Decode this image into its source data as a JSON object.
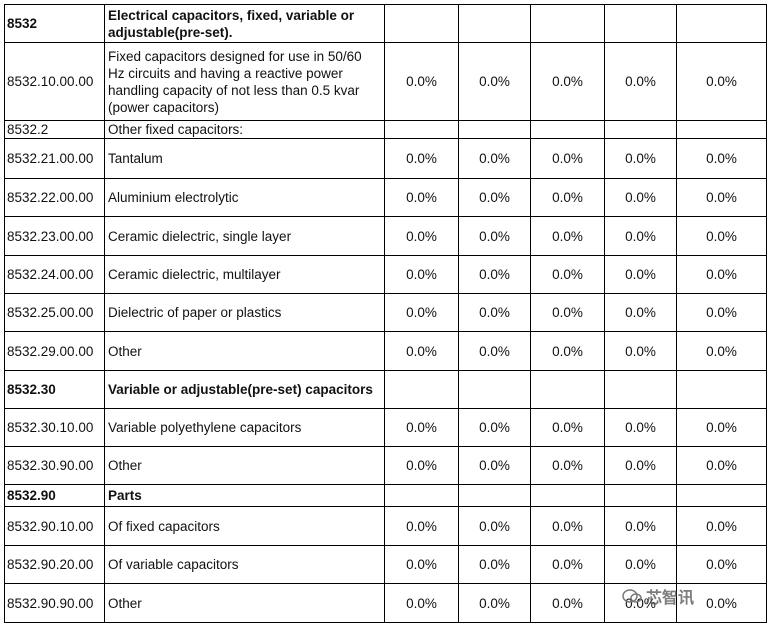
{
  "table": {
    "rows": [
      {
        "code": "8532",
        "description": "Electrical capacitors, fixed, variable or adjustable(pre-set).",
        "heading": true
      },
      {
        "code": "8532.10.00.00",
        "description": "Fixed capacitors designed for use in 50/60 Hz circuits and having a reactive power handling capacity of not less than 0.5 kvar (power capacitors)",
        "rates": [
          "0.0%",
          "0.0%",
          "0.0%",
          "0.0%",
          "0.0%"
        ]
      },
      {
        "code": "8532.2",
        "description": "Other fixed capacitors:"
      },
      {
        "code": "8532.21.00.00",
        "description": "Tantalum",
        "rates": [
          "0.0%",
          "0.0%",
          "0.0%",
          "0.0%",
          "0.0%"
        ]
      },
      {
        "code": "8532.22.00.00",
        "description": "Aluminium electrolytic",
        "rates": [
          "0.0%",
          "0.0%",
          "0.0%",
          "0.0%",
          "0.0%"
        ]
      },
      {
        "code": "8532.23.00.00",
        "description": "Ceramic dielectric, single layer",
        "rates": [
          "0.0%",
          "0.0%",
          "0.0%",
          "0.0%",
          "0.0%"
        ]
      },
      {
        "code": "8532.24.00.00",
        "description": "Ceramic dielectric, multilayer",
        "rates": [
          "0.0%",
          "0.0%",
          "0.0%",
          "0.0%",
          "0.0%"
        ]
      },
      {
        "code": "8532.25.00.00",
        "description": "Dielectric of paper or plastics",
        "rates": [
          "0.0%",
          "0.0%",
          "0.0%",
          "0.0%",
          "0.0%"
        ]
      },
      {
        "code": "8532.29.00.00",
        "description": "Other",
        "rates": [
          "0.0%",
          "0.0%",
          "0.0%",
          "0.0%",
          "0.0%"
        ]
      },
      {
        "code": "8532.30",
        "description": "Variable or adjustable(pre-set) capacitors",
        "heading": true
      },
      {
        "code": "8532.30.10.00",
        "description": "Variable polyethylene capacitors",
        "rates": [
          "0.0%",
          "0.0%",
          "0.0%",
          "0.0%",
          "0.0%"
        ]
      },
      {
        "code": "8532.30.90.00",
        "description": "Other",
        "rates": [
          "0.0%",
          "0.0%",
          "0.0%",
          "0.0%",
          "0.0%"
        ]
      },
      {
        "code": "8532.90",
        "description": "Parts",
        "heading": true
      },
      {
        "code": "8532.90.10.00",
        "description": "Of fixed capacitors",
        "rates": [
          "0.0%",
          "0.0%",
          "0.0%",
          "0.0%",
          "0.0%"
        ]
      },
      {
        "code": "8532.90.20.00",
        "description": "Of variable capacitors",
        "rates": [
          "0.0%",
          "0.0%",
          "0.0%",
          "0.0%",
          "0.0%"
        ]
      },
      {
        "code": "8532.90.90.00",
        "description": "Other",
        "rates": [
          "0.0%",
          "0.0%",
          "0.0%",
          "0.0%",
          "0.0%"
        ]
      }
    ]
  },
  "watermark": "芯智讯"
}
